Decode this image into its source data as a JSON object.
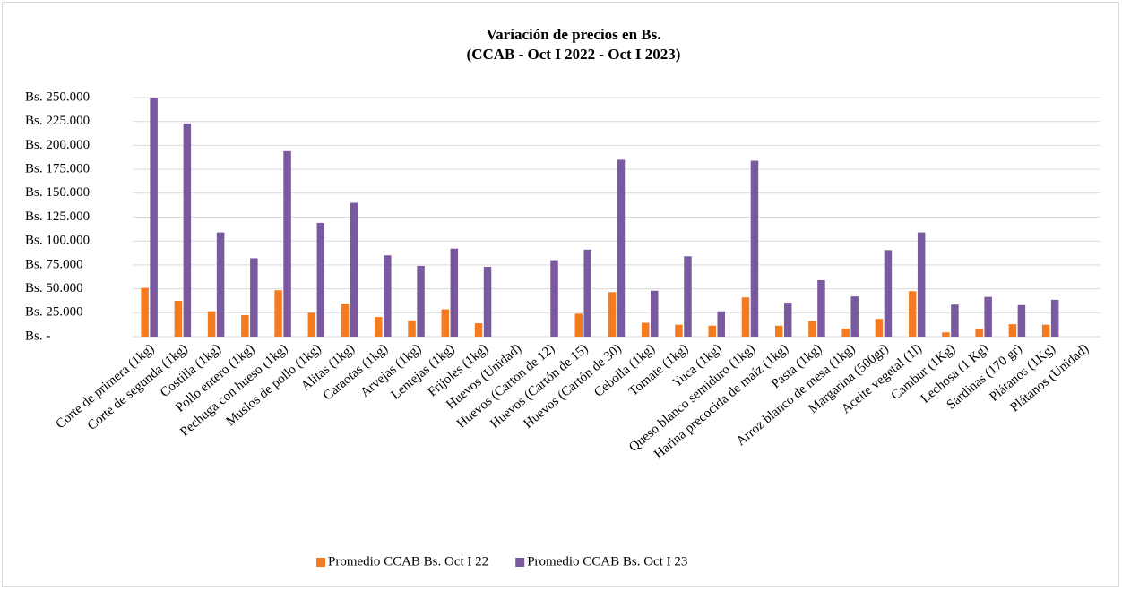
{
  "chart_data": {
    "type": "bar",
    "title": "Variación de precios en Bs.",
    "subtitle": "(CCAB - Oct I 2022 - Oct I 2023)",
    "categories": [
      "Corte de primera (1kg)",
      "Corte de segunda (1kg)",
      "Costilla (1kg)",
      "Pollo entero (1kg)",
      "Pechuga con hueso (1kg)",
      "Muslos de pollo (1kg)",
      "Alitas (1kg)",
      "Caraotas (1kg)",
      "Arvejas (1kg)",
      "Lentejas (1kg)",
      "Frijoles (1kg)",
      "Huevos (Unidad)",
      "Huevos (Cartón de 12)",
      "Huevos (Cartón de 15)",
      "Huevos (Cartón de 30)",
      "Cebolla (1kg)",
      "Tomate (1kg)",
      "Yuca (1kg)",
      "Queso blanco semiduro (1kg)",
      "Harina precocida de maíz (1kg)",
      "Pasta (1kg)",
      "Arroz blanco de mesa (1kg)",
      "Margarina (500gr)",
      "Aceite vegetal (1l)",
      "Cambur (1Kg)",
      "Lechosa (1 Kg)",
      "Sardinas (170 gr)",
      "Plátanos (1Kg)",
      "Plátanos (Unidad)"
    ],
    "series": [
      {
        "name": "Promedio CCAB Bs. Oct I 22",
        "color": "#f47b20",
        "values": [
          51000,
          37500,
          26500,
          22500,
          48500,
          25000,
          34500,
          20500,
          17000,
          28500,
          14000,
          null,
          null,
          24000,
          46500,
          14500,
          12500,
          11500,
          41000,
          11500,
          16500,
          8500,
          18500,
          47500,
          4500,
          8000,
          13000,
          12500,
          null
        ]
      },
      {
        "name": "Promedio CCAB Bs. Oct I 23",
        "color": "#7a5a9e",
        "values": [
          250000,
          223000,
          109000,
          82000,
          194000,
          119000,
          140000,
          85000,
          74000,
          92000,
          73000,
          null,
          80000,
          91000,
          185000,
          48000,
          84000,
          26500,
          184000,
          35500,
          59000,
          42000,
          90500,
          109000,
          33500,
          41500,
          33000,
          38500,
          null
        ]
      }
    ],
    "ylim": [
      0,
      250000
    ],
    "yticks": [
      {
        "value": 0,
        "label": "Bs. -"
      },
      {
        "value": 25000,
        "label": "Bs. 25.000"
      },
      {
        "value": 50000,
        "label": "Bs. 50.000"
      },
      {
        "value": 75000,
        "label": "Bs. 75.000"
      },
      {
        "value": 100000,
        "label": "Bs. 100.000"
      },
      {
        "value": 125000,
        "label": "Bs. 125.000"
      },
      {
        "value": 150000,
        "label": "Bs. 150.000"
      },
      {
        "value": 175000,
        "label": "Bs. 175.000"
      },
      {
        "value": 200000,
        "label": "Bs. 200.000"
      },
      {
        "value": 225000,
        "label": "Bs. 225.000"
      },
      {
        "value": 250000,
        "label": "Bs. 250.000"
      }
    ],
    "grid": true,
    "legend": "bottom"
  }
}
